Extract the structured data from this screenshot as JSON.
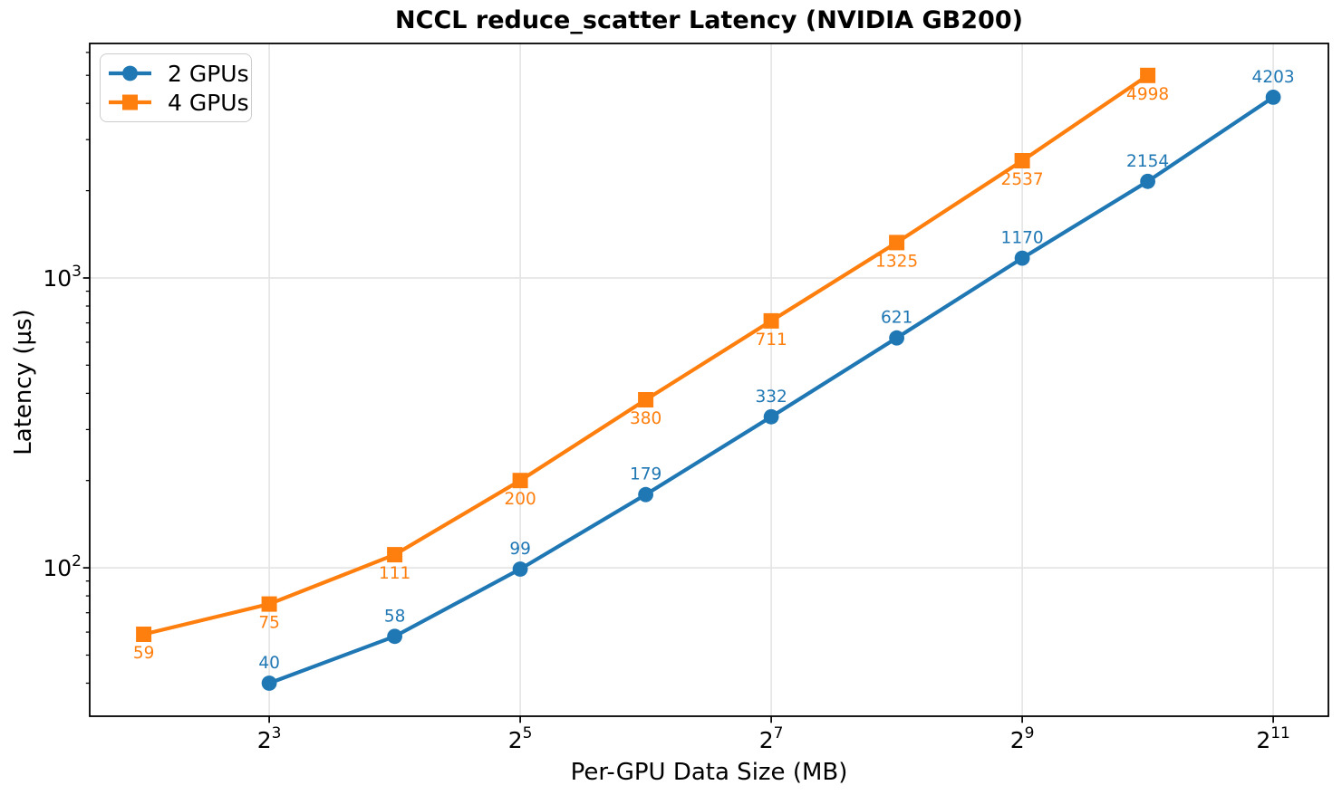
{
  "chart_data": {
    "type": "line",
    "title": "NCCL reduce_scatter Latency (NVIDIA GB200)",
    "xlabel": "Per-GPU Data Size (MB)",
    "ylabel": "Latency (µs)",
    "x_scale": "log2",
    "y_scale": "log10",
    "log_x_base": 2,
    "log_y_base": 10,
    "series": [
      {
        "name": "2 GPUs",
        "color": "#1f77b4",
        "marker": "circle",
        "label_side": "above",
        "x": [
          8,
          16,
          32,
          64,
          128,
          256,
          512,
          1024,
          2048
        ],
        "values": [
          40,
          58,
          99,
          179,
          332,
          621,
          1170,
          2154,
          4203
        ]
      },
      {
        "name": "4 GPUs",
        "color": "#ff7f0e",
        "marker": "square",
        "label_side": "below",
        "x": [
          4,
          8,
          16,
          32,
          64,
          128,
          256,
          512,
          1024
        ],
        "values": [
          59,
          75,
          111,
          200,
          380,
          711,
          1325,
          2537,
          4998
        ]
      }
    ],
    "x_major_ticks": [
      8,
      32,
      128,
      512,
      2048
    ],
    "y_major_ticks": [
      100,
      1000
    ],
    "y_minor_ticks": [
      40,
      50,
      60,
      70,
      80,
      90,
      200,
      300,
      400,
      500,
      600,
      700,
      800,
      900,
      2000,
      3000,
      4000,
      5000,
      6000
    ],
    "x_log2_range": [
      1.57,
      11.44
    ],
    "y_log10_range": [
      1.488,
      3.809
    ],
    "grid": "major",
    "grid_color": "#e5e5e5",
    "spine_color": "#000000",
    "legend_position": "upper-left"
  }
}
